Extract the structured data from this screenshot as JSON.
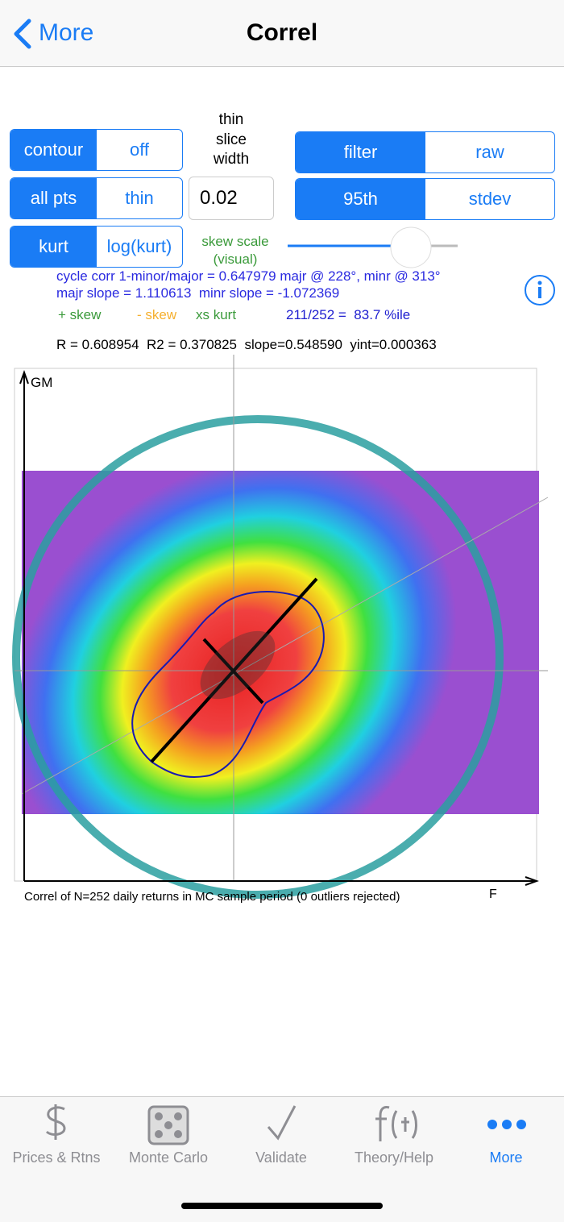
{
  "nav": {
    "back": "More",
    "title": "Correl"
  },
  "controls": {
    "left": [
      [
        "contour",
        "off"
      ],
      [
        "all pts",
        "thin"
      ],
      [
        "kurt",
        "log(kurt)"
      ]
    ],
    "slice_label": [
      "thin",
      "slice",
      "width"
    ],
    "slice_width": "0.02",
    "right": [
      [
        "filter",
        "raw"
      ],
      [
        "95th",
        "stdev"
      ]
    ],
    "skew_scale": [
      "skew scale",
      "(visual)"
    ]
  },
  "stats": {
    "cycle": "cycle corr 1-minor/major = 0.647979 majr @ 228°, minr @ 313°",
    "slopes": "majr slope = 1.110613  minr slope = -1.072369",
    "legend": [
      "+ skew",
      "- skew",
      "xs kurt"
    ],
    "percentile": "211/252 =  83.7 %ile",
    "regression": "R = 0.608954  R2 = 0.370825  slope=0.548590  yint=0.000363"
  },
  "plot": {
    "y_label": "GM",
    "x_label": "F",
    "caption": "Correl of N=252 daily returns in MC sample period (0 outliers rejected)"
  },
  "tabs": [
    "Prices & Rtns",
    "Monte Carlo",
    "Validate",
    "Theory/Help",
    "More"
  ]
}
